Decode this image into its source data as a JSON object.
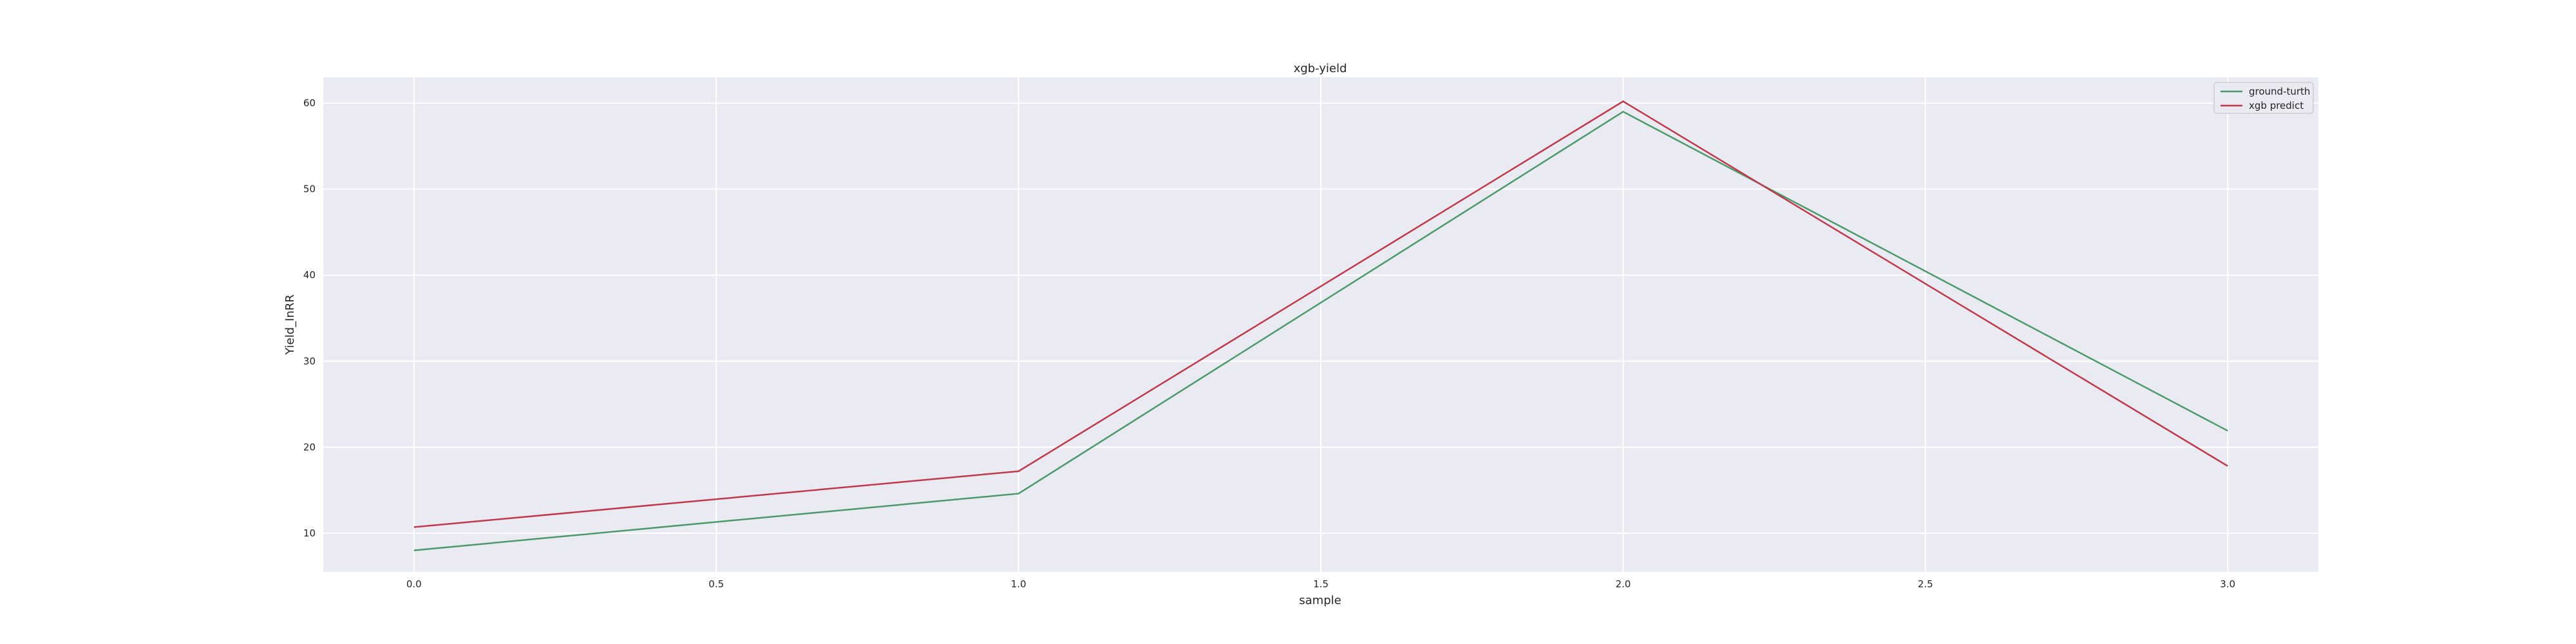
{
  "chart_data": {
    "type": "line",
    "title": "xgb-yield",
    "xlabel": "sample",
    "ylabel": "Yield_InRR",
    "x": [
      0,
      1,
      2,
      3
    ],
    "xlim": [
      -0.15,
      3.15
    ],
    "ylim": [
      5.5,
      63
    ],
    "xticks": [
      0.0,
      0.5,
      1.0,
      1.5,
      2.0,
      2.5,
      3.0
    ],
    "xtick_labels": [
      "0.0",
      "0.5",
      "1.0",
      "1.5",
      "2.0",
      "2.5",
      "3.0"
    ],
    "yticks": [
      10,
      20,
      30,
      40,
      50,
      60
    ],
    "ytick_labels": [
      "10",
      "20",
      "30",
      "40",
      "50",
      "60"
    ],
    "grid": true,
    "legend_position": "top-right",
    "series": [
      {
        "name": "ground-turth",
        "color": "#4c9a6a",
        "values": [
          8.0,
          14.6,
          59.0,
          21.9
        ]
      },
      {
        "name": "xgb predict",
        "color": "#c0394b",
        "values": [
          10.7,
          17.2,
          60.2,
          17.8
        ]
      }
    ]
  }
}
